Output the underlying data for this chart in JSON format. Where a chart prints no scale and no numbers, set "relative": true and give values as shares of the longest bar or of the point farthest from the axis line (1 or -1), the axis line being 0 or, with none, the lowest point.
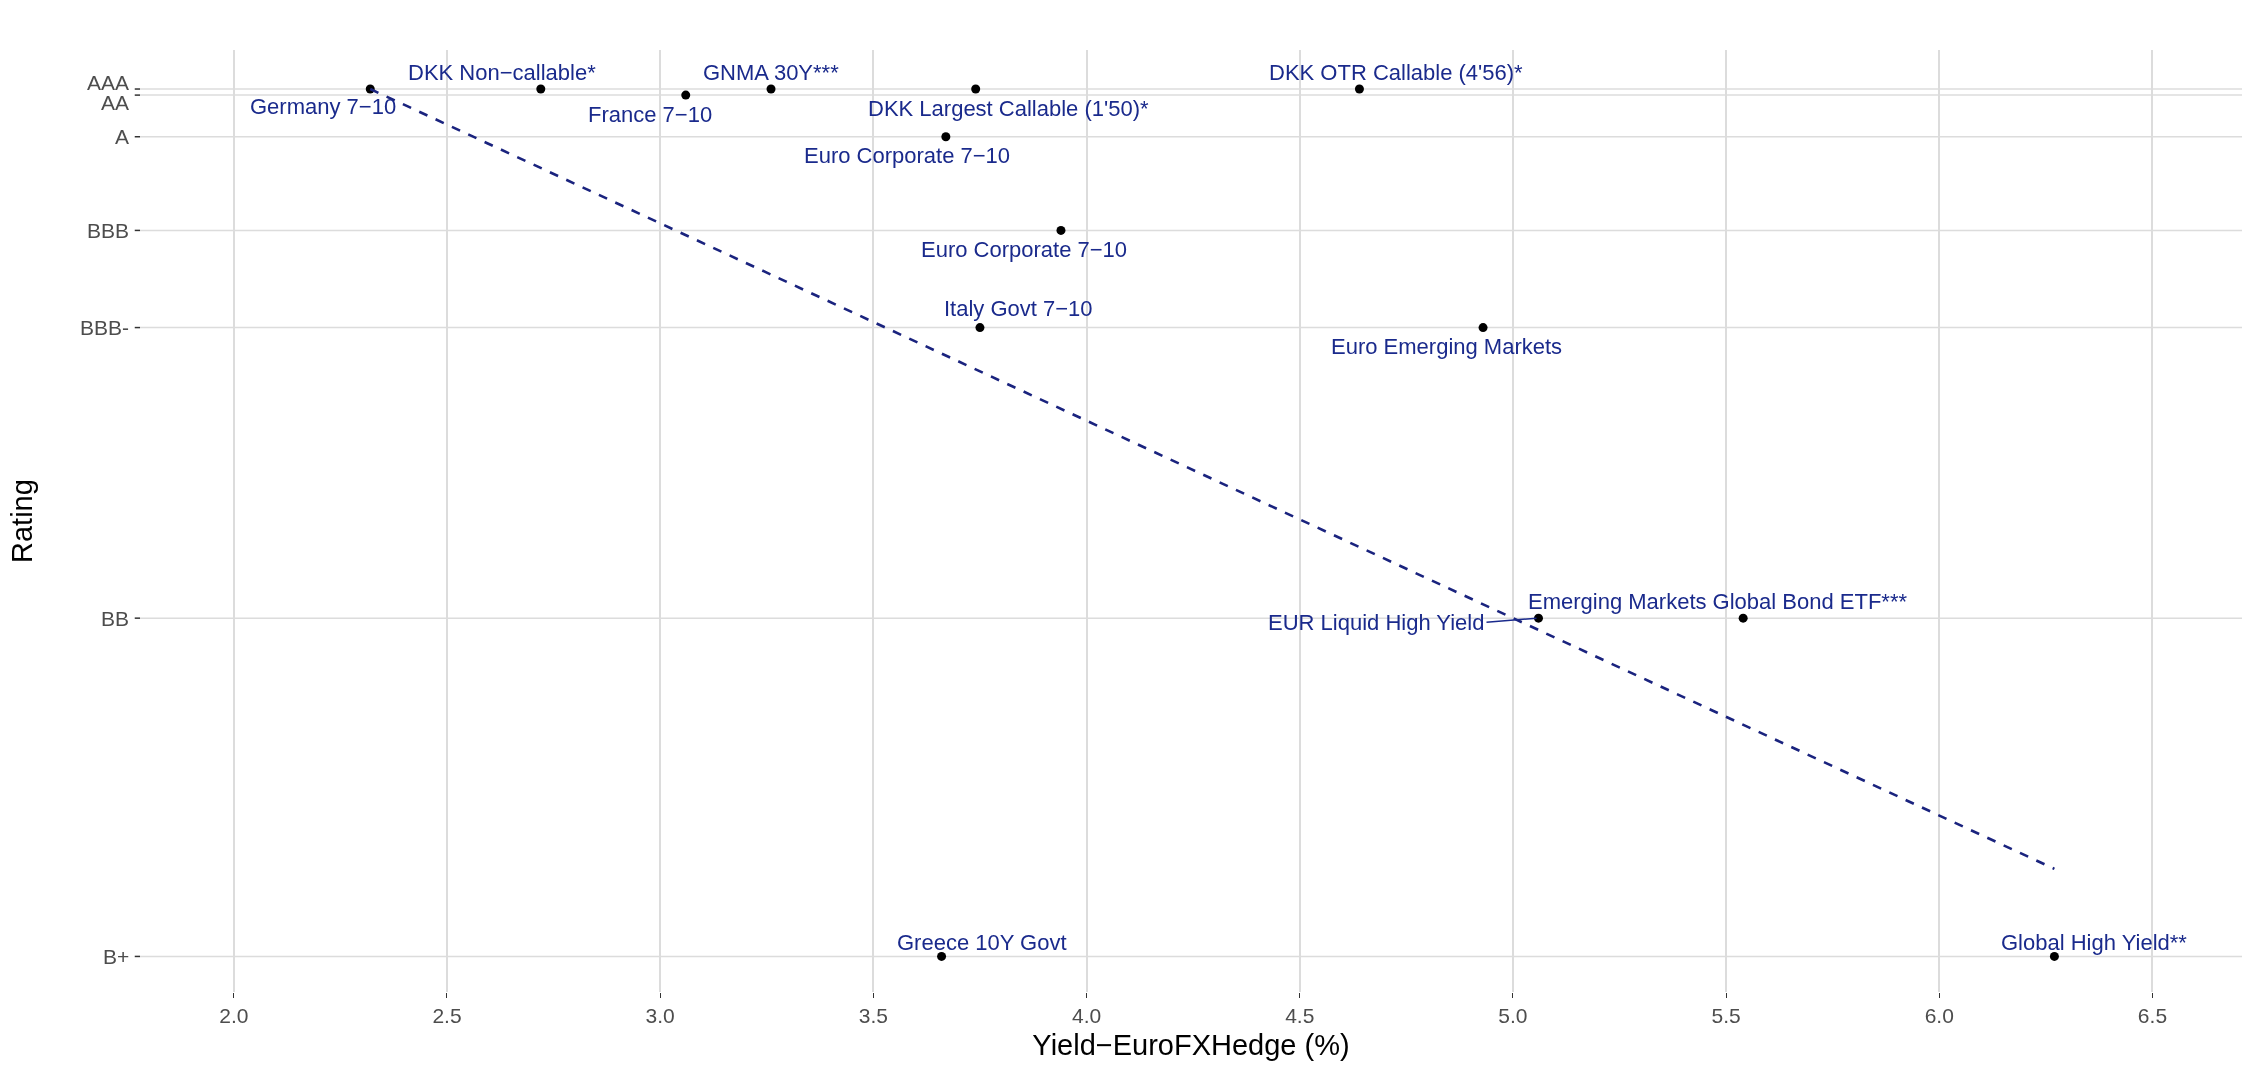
{
  "chart_data": {
    "type": "scatter",
    "xlabel": "Yield−EuroFXHedge (%)",
    "ylabel": "Rating",
    "relative": true,
    "xlim": [
      1.78,
      6.71
    ],
    "xticks": [
      {
        "value": 2,
        "label": "2.0"
      },
      {
        "value": 2.5,
        "label": "2.5"
      },
      {
        "value": 3,
        "label": "3.0"
      },
      {
        "value": 3.5,
        "label": "3.5"
      },
      {
        "value": 4,
        "label": "4.0"
      },
      {
        "value": 4.5,
        "label": "4.5"
      },
      {
        "value": 5,
        "label": "5.0"
      },
      {
        "value": 5.5,
        "label": "5.5"
      },
      {
        "value": 6,
        "label": "6.0"
      },
      {
        "value": 6.5,
        "label": "6.5"
      }
    ],
    "grid": "x",
    "marker": "circle",
    "ref_lines": [
      {
        "axis": "y",
        "value": 0,
        "label": "B+",
        "color": "#dcdcdc"
      },
      {
        "axis": "y",
        "value": 0.39,
        "label": "BB",
        "color": "#dcdcdc"
      },
      {
        "axis": "y",
        "value": 0.725,
        "label": "BBB-",
        "color": "#dcdcdc"
      },
      {
        "axis": "y",
        "value": 0.837,
        "label": "BBB",
        "color": "#dcdcdc"
      },
      {
        "axis": "y",
        "value": 0.945,
        "label": "A",
        "color": "#dcdcdc"
      },
      {
        "axis": "y",
        "value": 0.993,
        "label": "AA",
        "color": "#dcdcdc"
      },
      {
        "axis": "y",
        "value": 1,
        "label": "AAA",
        "color": "#dcdcdc"
      }
    ],
    "series": [
      {
        "type": "scatter",
        "color": "#000000",
        "x": [
          2.32,
          2.72,
          3.06,
          3.26,
          3.74,
          4.64,
          3.67,
          3.94,
          3.75,
          4.93,
          5.06,
          5.54,
          3.66,
          6.27
        ],
        "values": [
          1,
          1,
          0.993,
          1,
          1,
          1,
          0.945,
          0.837,
          0.725,
          0.725,
          0.39,
          0.39,
          0,
          0
        ]
      },
      {
        "type": "line",
        "color": "#1a237e",
        "line_style": "dashed",
        "marker": "none",
        "x": [
          2.32,
          6.27
        ],
        "values": [
          1,
          0.101
        ]
      }
    ],
    "annotations": [
      {
        "text": "Germany 7−10",
        "x": 2.32,
        "y": 1
      },
      {
        "text": "DKK Non−callable*",
        "x": 2.72,
        "y": 1
      },
      {
        "text": "France 7−10",
        "x": 3.06,
        "y": 0.993
      },
      {
        "text": "GNMA 30Y***",
        "x": 3.26,
        "y": 1
      },
      {
        "text": "DKK Largest Callable (1'50)*",
        "x": 3.74,
        "y": 1
      },
      {
        "text": "DKK OTR Callable (4'56)*",
        "x": 4.64,
        "y": 1
      },
      {
        "text": "Euro Corporate 7−10",
        "x": 3.67,
        "y": 0.945
      },
      {
        "text": "Euro Corporate 7−10",
        "x": 3.94,
        "y": 0.837
      },
      {
        "text": "Italy Govt 7−10",
        "x": 3.75,
        "y": 0.725
      },
      {
        "text": "Euro Emerging Markets",
        "x": 4.93,
        "y": 0.725
      },
      {
        "text": "EUR Liquid High Yield",
        "x": 5.06,
        "y": 0.39
      },
      {
        "text": "Emerging Markets Global Bond ETF***",
        "x": 5.54,
        "y": 0.39
      },
      {
        "text": "Greece 10Y Govt",
        "x": 3.66,
        "y": 0
      },
      {
        "text": "Global High Yield**",
        "x": 6.27,
        "y": 0
      }
    ]
  }
}
